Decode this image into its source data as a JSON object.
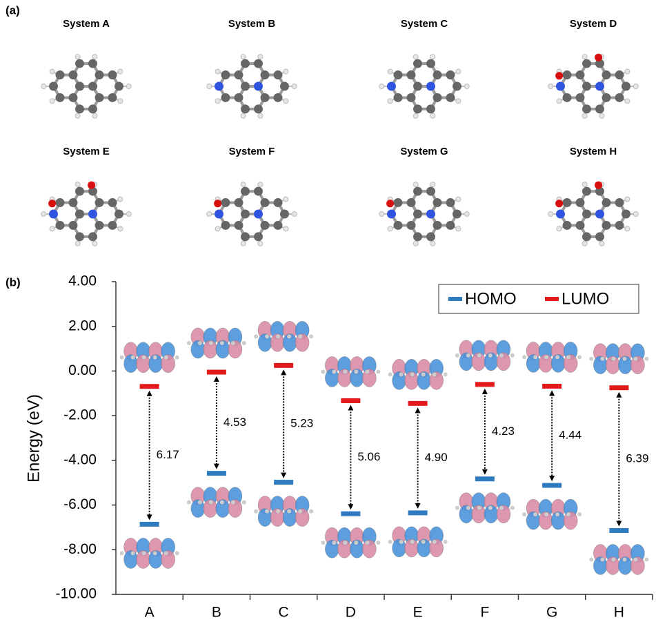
{
  "panel_labels": [
    "(a)",
    "(b)"
  ],
  "systems": [
    "System A",
    "System B",
    "System C",
    "System D",
    "System E",
    "System F",
    "System G",
    "System H"
  ],
  "chart_data": {
    "type": "level",
    "y_label": "Energy (eV)",
    "categories": [
      "A",
      "B",
      "C",
      "D",
      "E",
      "F",
      "G",
      "H"
    ],
    "series": [
      {
        "name": "HOMO",
        "color": "#2f7bbf",
        "values": [
          -6.86,
          -4.58,
          -4.98,
          -6.39,
          -6.35,
          -4.83,
          -5.12,
          -7.14
        ]
      },
      {
        "name": "LUMO",
        "color": "#e31a1c",
        "values": [
          -0.69,
          -0.05,
          0.25,
          -1.33,
          -1.45,
          -0.6,
          -0.68,
          -0.75
        ]
      }
    ],
    "annotations": [
      "6.17",
      "4.53",
      "5.23",
      "5.06",
      "4.90",
      "4.23",
      "4.44",
      "6.39"
    ],
    "ylim": [
      -10,
      4
    ],
    "yticks": [
      {
        "value": 4,
        "label": "4.00"
      },
      {
        "value": 2,
        "label": "2.00"
      },
      {
        "value": 0,
        "label": "0.00"
      },
      {
        "value": -2,
        "label": "-2.00"
      },
      {
        "value": -4,
        "label": "-4.00"
      },
      {
        "value": -6,
        "label": "-6.00"
      },
      {
        "value": -8,
        "label": "-8.00"
      },
      {
        "value": -10,
        "label": "-10.00"
      }
    ],
    "legend": "upper right"
  }
}
